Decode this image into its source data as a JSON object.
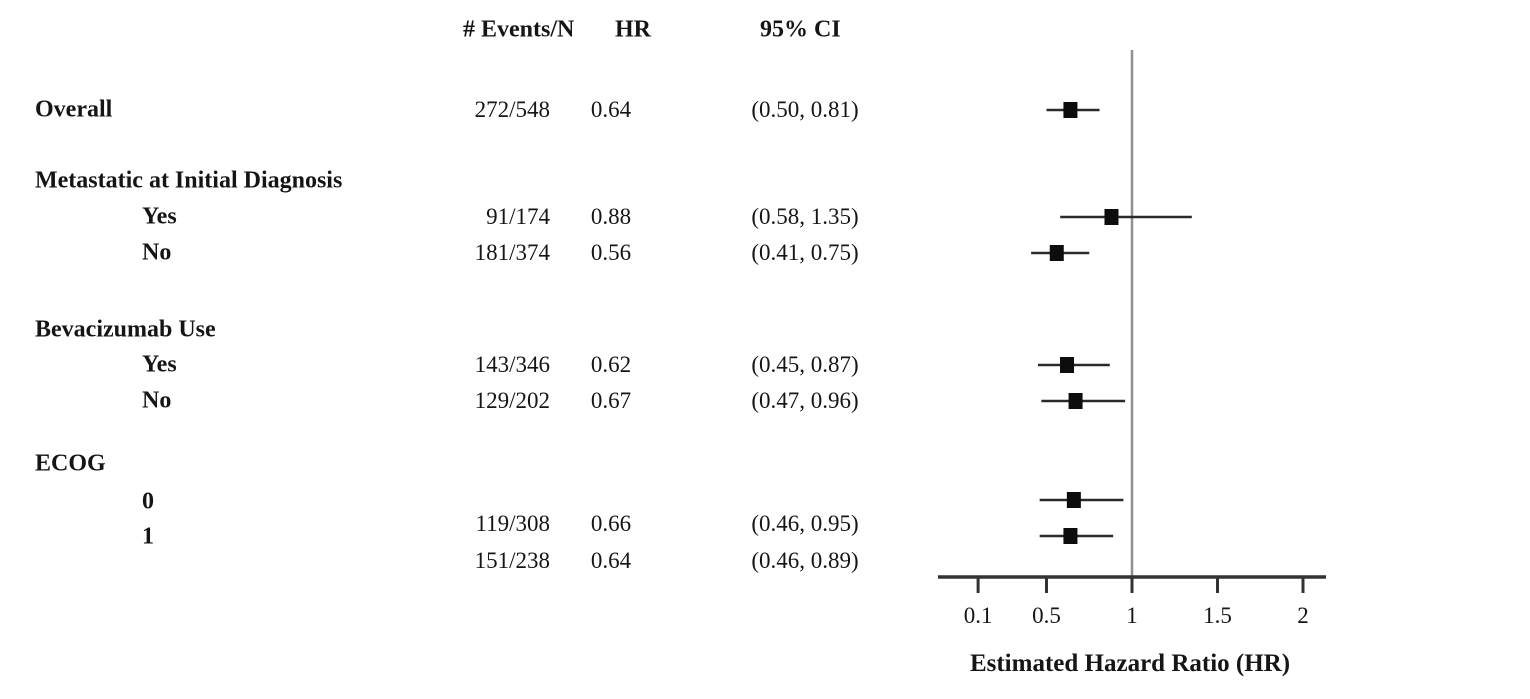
{
  "table": {
    "headers": {
      "events": "# Events/N",
      "hr": "HR",
      "ci": "95% CI"
    },
    "rows": [
      {
        "kind": "main",
        "label": "Overall",
        "events": "272/548",
        "hr": "0.64",
        "ci": "(0.50, 0.81)"
      },
      {
        "kind": "section",
        "label": "Metastatic at Initial Diagnosis"
      },
      {
        "kind": "sub",
        "label": "Yes",
        "events": "91/174",
        "hr": "0.88",
        "ci": "(0.58, 1.35)"
      },
      {
        "kind": "sub",
        "label": "No",
        "events": "181/374",
        "hr": "0.56",
        "ci": "(0.41, 0.75)"
      },
      {
        "kind": "section",
        "label": "Bevacizumab Use"
      },
      {
        "kind": "sub",
        "label": "Yes",
        "events": "143/346",
        "hr": "0.62",
        "ci": "(0.45, 0.87)"
      },
      {
        "kind": "sub",
        "label": "No",
        "events": "129/202",
        "hr": "0.67",
        "ci": "(0.47, 0.96)"
      },
      {
        "kind": "section",
        "label": "ECOG"
      },
      {
        "kind": "sub",
        "label": "0"
      },
      {
        "kind": "values",
        "events": "119/308",
        "hr": "0.66",
        "ci": "(0.46, 0.95)"
      },
      {
        "kind": "sub",
        "label": "1"
      },
      {
        "kind": "values",
        "events": "151/238",
        "hr": "0.64",
        "ci": "(0.46, 0.89)"
      }
    ]
  },
  "chart_data": {
    "type": "forest",
    "title": "",
    "xlabel": "Estimated Hazard Ratio (HR)",
    "x_ticks": [
      "0.1",
      "0.5",
      "1",
      "1.5",
      "2"
    ],
    "x_tick_values": [
      0.1,
      0.5,
      1,
      1.5,
      2
    ],
    "x_axis_linear": true,
    "reference_line": 1,
    "series": [
      {
        "group": "Overall",
        "subgroup": "",
        "events": 272,
        "n": 548,
        "hr": 0.64,
        "ci_low": 0.5,
        "ci_high": 0.81
      },
      {
        "group": "Metastatic at Initial Diagnosis",
        "subgroup": "Yes",
        "events": 91,
        "n": 174,
        "hr": 0.88,
        "ci_low": 0.58,
        "ci_high": 1.35
      },
      {
        "group": "Metastatic at Initial Diagnosis",
        "subgroup": "No",
        "events": 181,
        "n": 374,
        "hr": 0.56,
        "ci_low": 0.41,
        "ci_high": 0.75
      },
      {
        "group": "Bevacizumab Use",
        "subgroup": "Yes",
        "events": 143,
        "n": 346,
        "hr": 0.62,
        "ci_low": 0.45,
        "ci_high": 0.87
      },
      {
        "group": "Bevacizumab Use",
        "subgroup": "No",
        "events": 129,
        "n": 202,
        "hr": 0.67,
        "ci_low": 0.47,
        "ci_high": 0.96
      },
      {
        "group": "ECOG",
        "subgroup": "0",
        "events": 119,
        "n": 308,
        "hr": 0.66,
        "ci_low": 0.46,
        "ci_high": 0.95
      },
      {
        "group": "ECOG",
        "subgroup": "1",
        "events": 151,
        "n": 238,
        "hr": 0.64,
        "ci_low": 0.46,
        "ci_high": 0.89
      }
    ]
  },
  "colors": {
    "text": "#151515",
    "marker": "#0d0d0d",
    "ci_line": "#2a2a2a",
    "axis": "#333333",
    "reference_line": "#8f8f8f"
  }
}
